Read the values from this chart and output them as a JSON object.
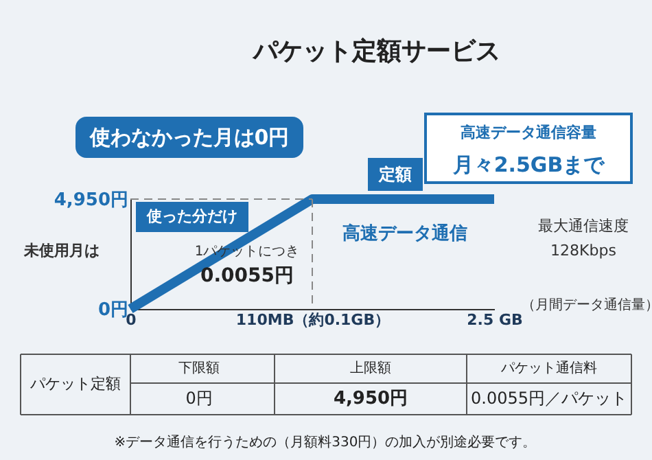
{
  "chart_data": {
    "type": "line",
    "title": "パケット定額サービス",
    "categories": [
      "0",
      "110MB（約0.1GB）",
      "2.5 GB"
    ],
    "series": [
      {
        "color": "#1f6fb2",
        "values": [
          0,
          4950,
          4950
        ]
      }
    ],
    "ylim": [
      0,
      4950
    ],
    "yticks": [
      {
        "value": 4950,
        "label": "4,950円"
      },
      {
        "value": 0,
        "label": "0円"
      }
    ],
    "xlabel": "（月間データ通信量）",
    "ref_lines": [
      {
        "axis": "y",
        "value": 4950,
        "line_style": "dashed",
        "color": "#888888"
      },
      {
        "axis": "x",
        "value": "110MB（約0.1GB）",
        "line_style": "dashed",
        "color": "#888888"
      }
    ],
    "line_style": "solid",
    "grid": false,
    "annotations": [
      "使わなかった月は0円",
      "使った分だけ",
      "1パケットにつき",
      "0.0055円",
      "定額",
      "高速データ通信",
      "高速データ通信容量",
      "月々2.5GBまで",
      "最大通信速度",
      "128Kbps",
      "未使用月は",
      "パケット定額",
      "下限額",
      "0円",
      "上限額",
      "4,950円",
      "パケット通信料",
      "0.0055円／パケット",
      "※データ通信を行うための（月額料330円）の加入が別途必要です。"
    ]
  }
}
